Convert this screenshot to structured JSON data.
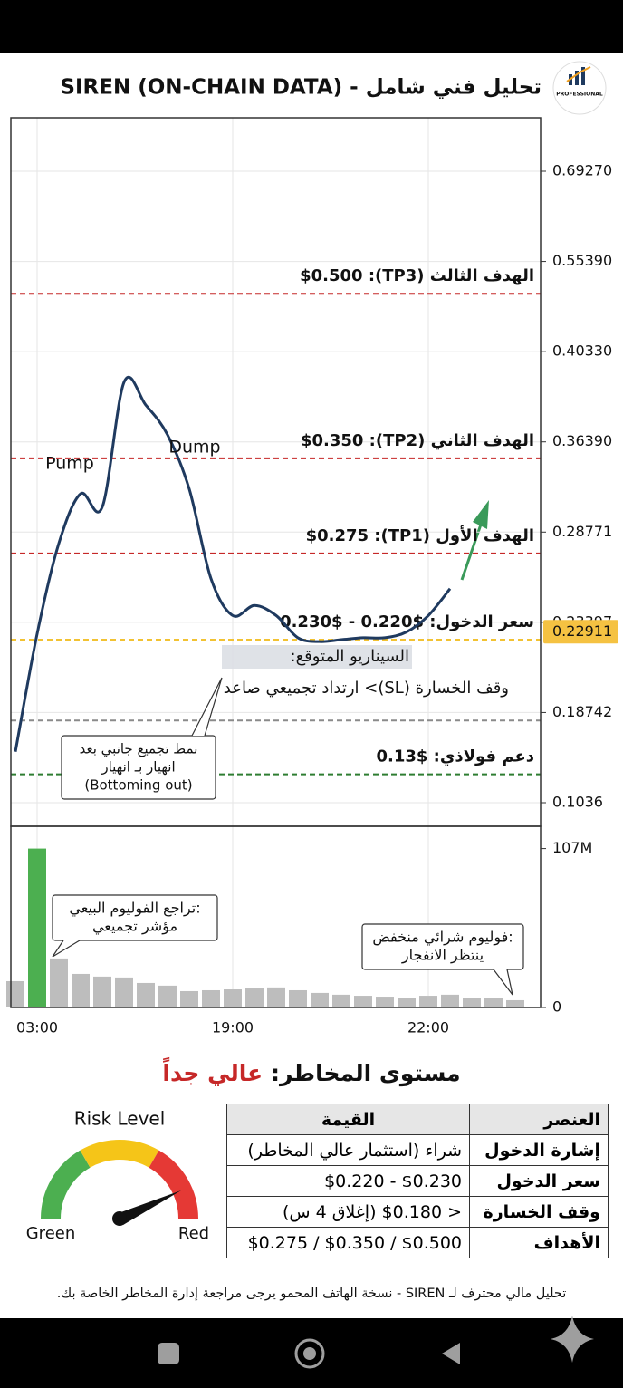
{
  "header": {
    "logo_text": "PROFESSIONAL",
    "title": "تحليل فني شامل - SIREN (ON-CHAIN DATA)"
  },
  "chart_data": [
    {
      "type": "line",
      "color": "#1f3a5f",
      "values": [
        0.151,
        0.228,
        0.281,
        0.32,
        0.309,
        0.39,
        0.38,
        0.367,
        0.324,
        0.26,
        0.238,
        0.244,
        0.238,
        0.226,
        0.224,
        0.225,
        0.226,
        0.226,
        0.229,
        0.238,
        0.254,
        null,
        null,
        null
      ],
      "ylim": [
        0.08,
        0.78
      ],
      "yticks": [
        {
          "value": 0.6927,
          "label": "0.69270"
        },
        {
          "value": 0.5539,
          "label": "0.55390"
        },
        {
          "value": 0.4033,
          "label": "0.40330"
        },
        {
          "value": 0.3639,
          "label": "0.36390"
        },
        0.28771,
        0.23397,
        0.18742,
        0.1036
      ],
      "grid": true,
      "current_price": 0.22911,
      "current_price_color": "#f5c242",
      "levels": [
        {
          "label": "الهدف الثالث (TP3): $0.500",
          "value": 0.5,
          "color": "#c62828"
        },
        {
          "label": "الهدف الثاني (TP2): $0.350",
          "value": 0.35,
          "color": "#c62828"
        },
        {
          "label": "الهدف الأول (TP1): $0.275",
          "value": 0.275,
          "color": "#c62828"
        },
        {
          "label": "سعر الدخول: $0.220 - $0.230",
          "value": 0.225,
          "color": "#f2c232"
        },
        {
          "value": 0.18,
          "color": "#8a8a8a"
        },
        {
          "label": "دعم فولاذي: $0.13",
          "value": 0.13,
          "color": "#2e7d32"
        }
      ],
      "annotations": [
        {
          "lines": [
            "Pump"
          ]
        },
        {
          "lines": [
            "Dump"
          ]
        },
        {
          "lines": [
            "نمط تجميع جانبي بعد",
            "انهيار بـ انهيار",
            "(Bottoming out)"
          ]
        },
        {
          "lines": [
            "السيناريو المتوقع:"
          ]
        },
        {
          "lines": [
            "وقف الخسارة (SL)> ارتداد تجميعي صاعد"
          ]
        }
      ]
    },
    {
      "type": "bar",
      "categories": [
        null,
        "03:00",
        null,
        null,
        null,
        null,
        null,
        null,
        null,
        null,
        "19:00",
        null,
        null,
        null,
        null,
        null,
        null,
        null,
        null,
        "22:00",
        null,
        null,
        null,
        null
      ],
      "values": [
        17700000,
        107000000,
        33000000,
        22600000,
        20800000,
        20200000,
        16500000,
        14700000,
        11000000,
        11600000,
        12200000,
        12800000,
        13500000,
        11600000,
        9800000,
        8600000,
        7900000,
        7300000,
        6700000,
        7900000,
        8600000,
        6700000,
        6100000,
        4900000
      ],
      "colors": [
        "#bdbdbd",
        "#4caf50",
        "#bdbdbd",
        "#bdbdbd",
        "#bdbdbd",
        "#bdbdbd",
        "#bdbdbd",
        "#bdbdbd",
        "#bdbdbd",
        "#bdbdbd",
        "#bdbdbd",
        "#bdbdbd",
        "#bdbdbd",
        "#bdbdbd",
        "#bdbdbd",
        "#bdbdbd",
        "#bdbdbd",
        "#bdbdbd",
        "#bdbdbd",
        "#bdbdbd",
        "#bdbdbd",
        "#bdbdbd",
        "#bdbdbd",
        "#bdbdbd"
      ],
      "ylim": [
        0,
        122000000
      ],
      "yticks": [
        {
          "value": 107000000,
          "label": "107M"
        },
        0
      ],
      "grid": true,
      "annotations": [
        {
          "lines": [
            "تراجع الفوليوم البيعي:",
            "مؤشر تجميعي"
          ]
        },
        {
          "lines": [
            "فوليوم شرائي منخفض:",
            "ينتظر الانفجار"
          ]
        }
      ]
    }
  ],
  "risk": {
    "title_label": "مستوى المخاطر:",
    "title_value": "عالي جداً",
    "gauge_title": "Risk Level",
    "gauge_low": "Green",
    "gauge_high": "Red"
  },
  "table": {
    "header": [
      "العنصر",
      "القيمة"
    ],
    "rows": [
      [
        "إشارة الدخول",
        "شراء (استثمار عالي المخاطر)"
      ],
      [
        "سعر الدخول",
        "$0.220 - $0.230"
      ],
      [
        "وقف الخسارة",
        "< $0.180 (إغلاق 4 س)"
      ],
      [
        "الأهداف",
        "$0.275 / $0.350 / $0.500"
      ]
    ]
  },
  "footer": "تحليل مالي محترف لـ SIREN - نسخة الهاتف المحمو يرجى مراجعة إدارة المخاطر الخاصة بك."
}
